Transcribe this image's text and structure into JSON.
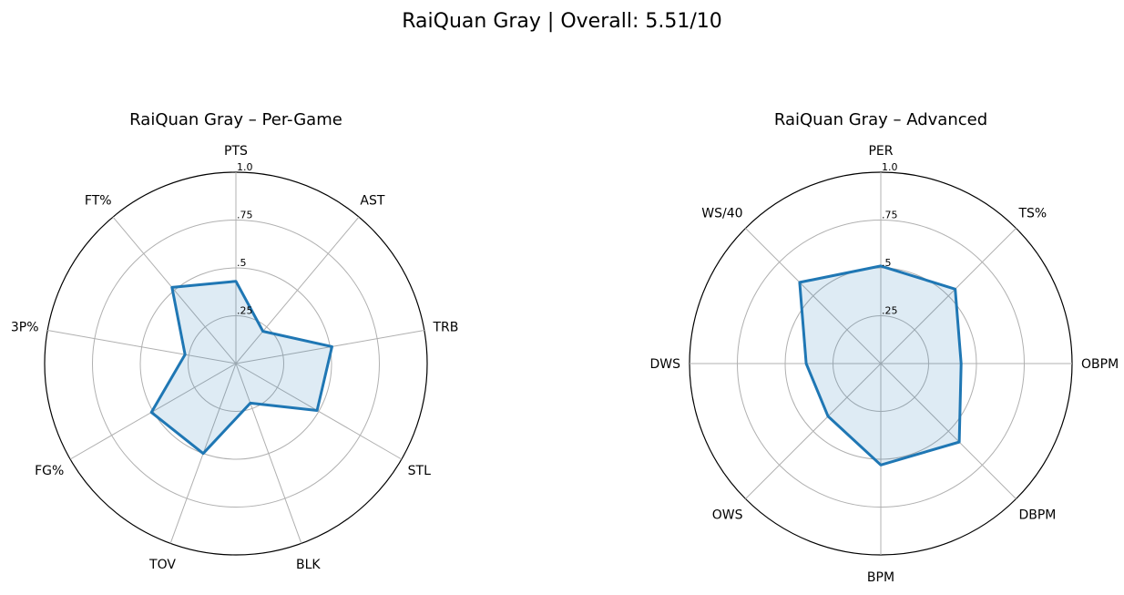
{
  "figure": {
    "title": "RaiQuan Gray | Overall: 5.51/10"
  },
  "style": {
    "line_color": "#1f77b4",
    "fill_color": "#1f77b4",
    "fill_opacity": 0.15,
    "grid_color": "#b0b0b0",
    "frame_color": "#000000"
  },
  "chart_data": [
    {
      "type": "radar",
      "title": "RaiQuan Gray – Per-Game",
      "categories": [
        "PTS",
        "AST",
        "TRB",
        "STL",
        "BLK",
        "TOV",
        "FG%",
        "3P%",
        "FT%"
      ],
      "values": [
        0.43,
        0.22,
        0.51,
        0.49,
        0.22,
        0.5,
        0.51,
        0.27,
        0.52
      ],
      "rlim": [
        0,
        1
      ],
      "r_ticks": [
        0.25,
        0.5,
        0.75,
        1.0
      ],
      "r_tick_labels": [
        ".25",
        ".5",
        ".75",
        "1.0"
      ],
      "grid": true
    },
    {
      "type": "radar",
      "title": "RaiQuan Gray – Advanced",
      "categories": [
        "PER",
        "TS%",
        "OBPM",
        "DBPM",
        "BPM",
        "OWS",
        "DWS",
        "WS/40"
      ],
      "values": [
        0.51,
        0.55,
        0.42,
        0.58,
        0.53,
        0.39,
        0.39,
        0.6
      ],
      "rlim": [
        0,
        1
      ],
      "r_ticks": [
        0.25,
        0.5,
        0.75,
        1.0
      ],
      "r_tick_labels": [
        ".25",
        ".5",
        ".75",
        "1.0"
      ],
      "grid": true
    }
  ]
}
